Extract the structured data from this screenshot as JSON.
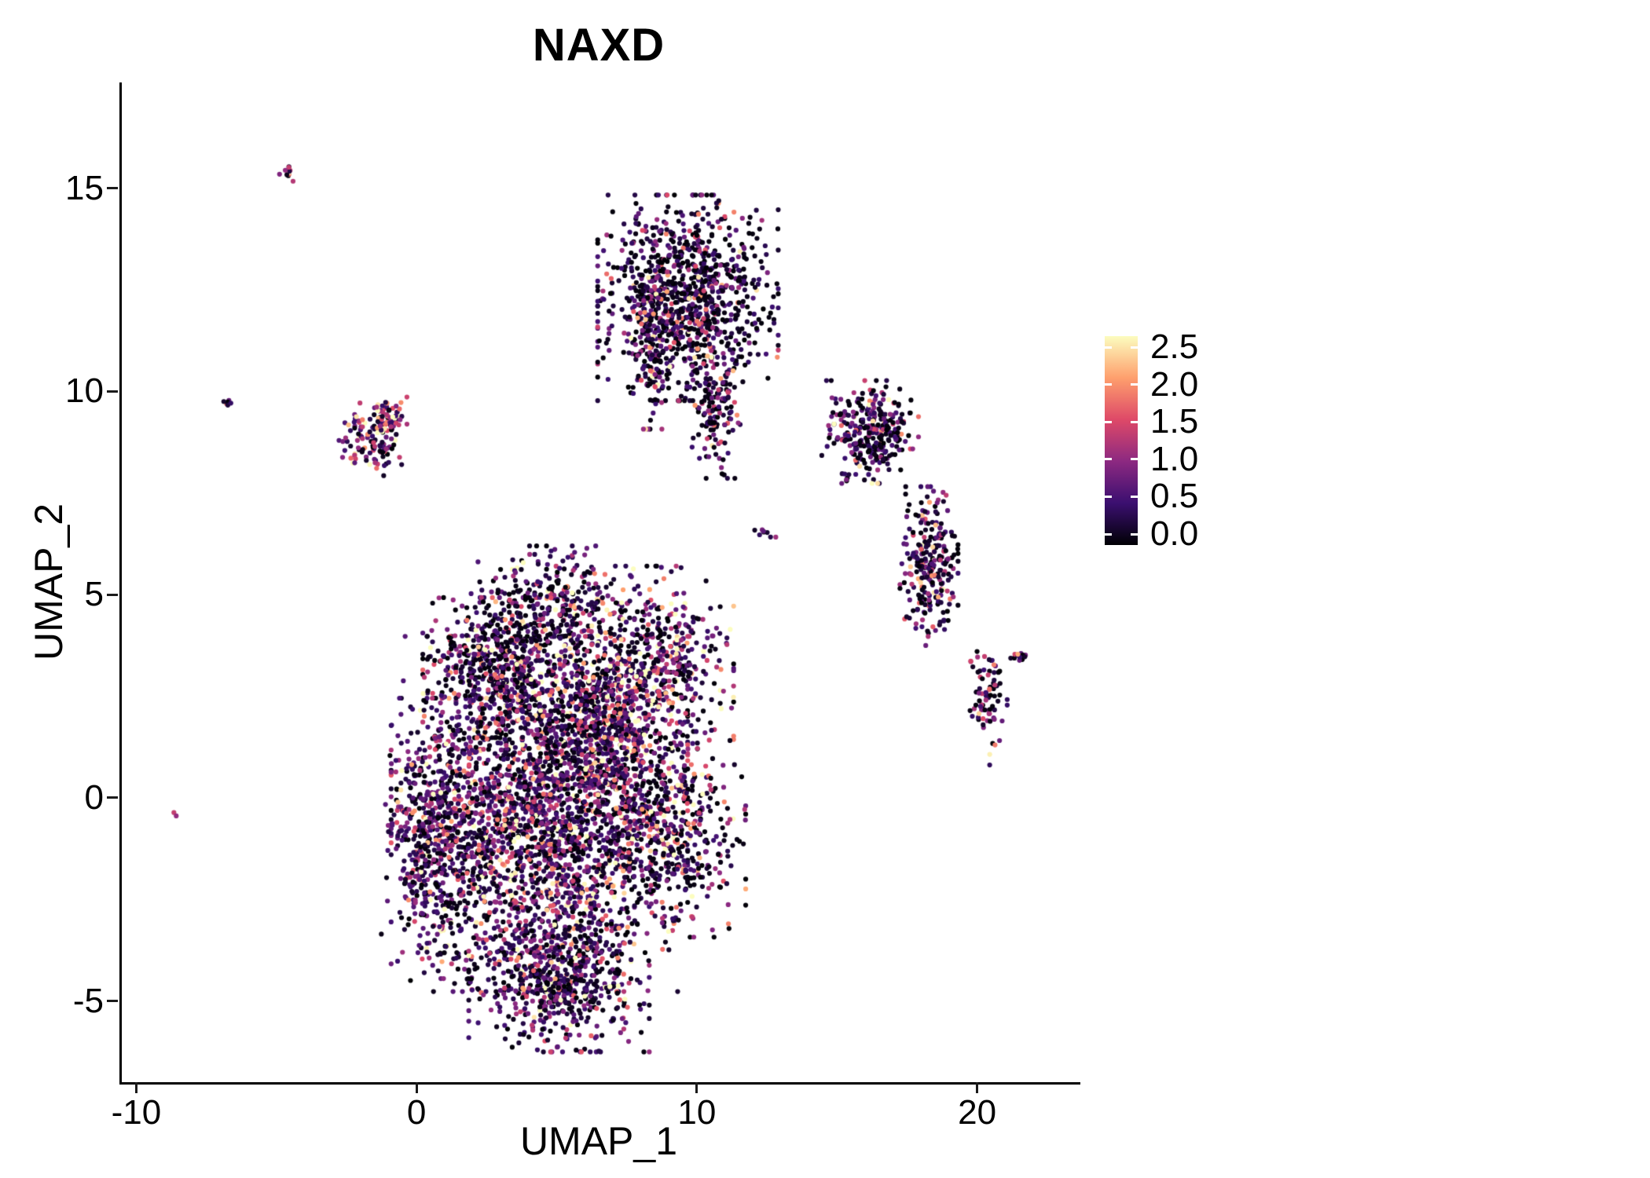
{
  "chart_data": {
    "type": "scatter",
    "title": "NAXD",
    "xlabel": "UMAP_1",
    "ylabel": "UMAP_2",
    "xlim": [
      -10.6,
      23.6
    ],
    "ylim": [
      -7.0,
      17.6
    ],
    "x_ticks": [
      -10,
      0,
      10,
      20
    ],
    "x_tick_labels": [
      "-10",
      "0",
      "10",
      "20"
    ],
    "y_ticks": [
      -5,
      0,
      5,
      10,
      15
    ],
    "y_tick_labels": [
      "-5",
      "0",
      "5",
      "10",
      "15"
    ],
    "grid": "off",
    "axis_lines": "left-bottom-only",
    "point_radius_px": 3.1,
    "colormap": {
      "name": "magma",
      "stops": [
        "#000004",
        "#3b0f70",
        "#8c2981",
        "#de4968",
        "#fe9f6d",
        "#fcfdbf"
      ]
    },
    "legend": {
      "position": "right",
      "range": [
        0.0,
        2.5
      ],
      "tick_labels": [
        "2.5",
        "2.0",
        "1.5",
        "1.0",
        "0.5",
        "0.0"
      ]
    },
    "clusters": [
      {
        "name": "central-main",
        "cx": 4.3,
        "cy": -0.4,
        "sx": 2.3,
        "sy": 1.9,
        "n": 2400,
        "zero_frac": 0.28,
        "expr_mean": 0.75
      },
      {
        "name": "central-lower-lobe",
        "cx": 5.0,
        "cy": -4.3,
        "sx": 1.4,
        "sy": 0.85,
        "n": 650,
        "zero_frac": 0.3,
        "expr_mean": 0.7
      },
      {
        "name": "central-left-edge",
        "cx": 0.5,
        "cy": -1.0,
        "sx": 0.8,
        "sy": 1.5,
        "n": 450,
        "zero_frac": 0.25,
        "expr_mean": 0.7
      },
      {
        "name": "central-upper-blob",
        "cx": 2.9,
        "cy": 3.2,
        "sx": 1.2,
        "sy": 0.75,
        "n": 520,
        "zero_frac": 0.35,
        "expr_mean": 0.65
      },
      {
        "name": "central-top-lobe",
        "cx": 4.7,
        "cy": 4.7,
        "sx": 1.3,
        "sy": 0.65,
        "n": 330,
        "zero_frac": 0.3,
        "expr_mean": 0.7
      },
      {
        "name": "gap-fill-upper",
        "cx": 6.0,
        "cy": 2.2,
        "sx": 1.0,
        "sy": 1.0,
        "n": 300,
        "zero_frac": 0.3,
        "expr_mean": 0.8
      },
      {
        "name": "right-upper-lobe",
        "cx": 8.7,
        "cy": 3.4,
        "sx": 1.1,
        "sy": 1.0,
        "n": 420,
        "zero_frac": 0.22,
        "expr_mean": 0.95
      },
      {
        "name": "right-lower-lobe",
        "cx": 8.9,
        "cy": -0.9,
        "sx": 1.2,
        "sy": 1.1,
        "n": 480,
        "zero_frac": 0.3,
        "expr_mean": 0.8
      },
      {
        "name": "bridge",
        "cx": 7.2,
        "cy": 1.6,
        "sx": 0.6,
        "sy": 1.1,
        "n": 280,
        "zero_frac": 0.2,
        "expr_mean": 0.9
      },
      {
        "name": "top-middle-cluster",
        "cx": 9.6,
        "cy": 12.3,
        "sx": 1.4,
        "sy": 1.1,
        "n": 950,
        "zero_frac": 0.45,
        "expr_mean": 0.55
      },
      {
        "name": "top-middle-tail",
        "cx": 10.6,
        "cy": 9.7,
        "sx": 0.45,
        "sy": 0.8,
        "n": 160,
        "zero_frac": 0.4,
        "expr_mean": 0.6
      },
      {
        "name": "top-middle-left-edge",
        "cx": 8.3,
        "cy": 11.6,
        "sx": 0.35,
        "sy": 1.1,
        "n": 140,
        "zero_frac": 0.25,
        "expr_mean": 0.8
      },
      {
        "name": "right-cluster-upper",
        "cx": 16.1,
        "cy": 9.0,
        "sx": 0.75,
        "sy": 0.55,
        "n": 300,
        "zero_frac": 0.4,
        "expr_mean": 0.6
      },
      {
        "name": "right-cluster-lower",
        "cx": 18.2,
        "cy": 5.7,
        "sx": 0.45,
        "sy": 0.85,
        "n": 260,
        "zero_frac": 0.35,
        "expr_mean": 0.7
      },
      {
        "name": "far-right-small",
        "cx": 20.3,
        "cy": 2.3,
        "sx": 0.3,
        "sy": 0.65,
        "n": 80,
        "zero_frac": 0.35,
        "expr_mean": 0.65
      },
      {
        "name": "far-right-dash",
        "cx": 21.5,
        "cy": 3.5,
        "sx": 0.2,
        "sy": 0.1,
        "n": 12,
        "zero_frac": 0.2,
        "expr_mean": 0.8
      },
      {
        "name": "small-left-cluster",
        "cx": -1.7,
        "cy": 8.8,
        "sx": 0.5,
        "sy": 0.45,
        "n": 120,
        "zero_frac": 0.15,
        "expr_mean": 1.1
      },
      {
        "name": "small-left-cluster-b",
        "cx": -1.0,
        "cy": 9.4,
        "sx": 0.25,
        "sy": 0.2,
        "n": 40,
        "zero_frac": 0.15,
        "expr_mean": 1.0
      },
      {
        "name": "tiny-top-left",
        "cx": -4.7,
        "cy": 15.4,
        "sx": 0.12,
        "sy": 0.1,
        "n": 12,
        "zero_frac": 0.2,
        "expr_mean": 0.9
      },
      {
        "name": "tiny-left-pair",
        "cx": -6.8,
        "cy": 9.7,
        "sx": 0.1,
        "sy": 0.08,
        "n": 7,
        "zero_frac": 0.3,
        "expr_mean": 0.7
      },
      {
        "name": "isolated-point",
        "cx": -8.7,
        "cy": -0.4,
        "sx": 0.05,
        "sy": 0.05,
        "n": 2,
        "zero_frac": 0.0,
        "expr_mean": 1.2
      },
      {
        "name": "tiny-mid-pair",
        "cx": 12.4,
        "cy": 6.5,
        "sx": 0.25,
        "sy": 0.08,
        "n": 8,
        "zero_frac": 0.2,
        "expr_mean": 0.8
      }
    ]
  }
}
